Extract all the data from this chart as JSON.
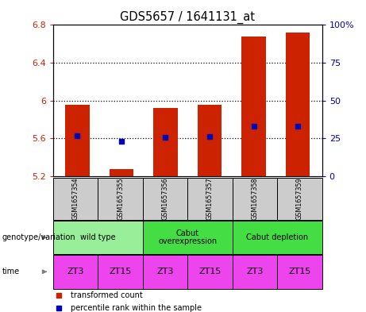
{
  "title": "GDS5657 / 1641131_at",
  "samples": [
    "GSM1657354",
    "GSM1657355",
    "GSM1657356",
    "GSM1657357",
    "GSM1657358",
    "GSM1657359"
  ],
  "bar_bottoms": [
    5.2,
    5.2,
    5.2,
    5.2,
    5.2,
    5.2
  ],
  "bar_tops": [
    5.96,
    5.28,
    5.92,
    5.96,
    6.68,
    6.72
  ],
  "blue_dots": [
    5.63,
    5.57,
    5.61,
    5.62,
    5.73,
    5.73
  ],
  "ylim_left": [
    5.2,
    6.8
  ],
  "ylim_right": [
    0,
    100
  ],
  "yticks_left": [
    5.2,
    5.6,
    6.0,
    6.4,
    6.8
  ],
  "yticks_right": [
    0,
    25,
    50,
    75,
    100
  ],
  "ytick_labels_left": [
    "5.2",
    "5.6",
    "6",
    "6.4",
    "6.8"
  ],
  "ytick_labels_right": [
    "0",
    "25",
    "50",
    "75",
    "100%"
  ],
  "hgrid_values": [
    5.6,
    6.0,
    6.4
  ],
  "genotype_groups": [
    {
      "label": "wild type",
      "cols": [
        0,
        1
      ],
      "color": "#99EE99"
    },
    {
      "label": "Cabut\noverexpression",
      "cols": [
        2,
        3
      ],
      "color": "#44DD44"
    },
    {
      "label": "Cabut depletion",
      "cols": [
        4,
        5
      ],
      "color": "#44DD44"
    }
  ],
  "time_labels": [
    "ZT3",
    "ZT15",
    "ZT3",
    "ZT15",
    "ZT3",
    "ZT15"
  ],
  "time_color": "#EE44EE",
  "bar_color": "#CC2200",
  "dot_color": "#0000BB",
  "left_label_color": "#CC2200",
  "right_label_color": "#0000BB",
  "sample_bg_color": "#CCCCCC",
  "genotype_label": "genotype/variation",
  "time_label": "time",
  "legend_items": [
    {
      "color": "#CC2200",
      "label": "transformed count"
    },
    {
      "color": "#0000BB",
      "label": "percentile rank within the sample"
    }
  ]
}
